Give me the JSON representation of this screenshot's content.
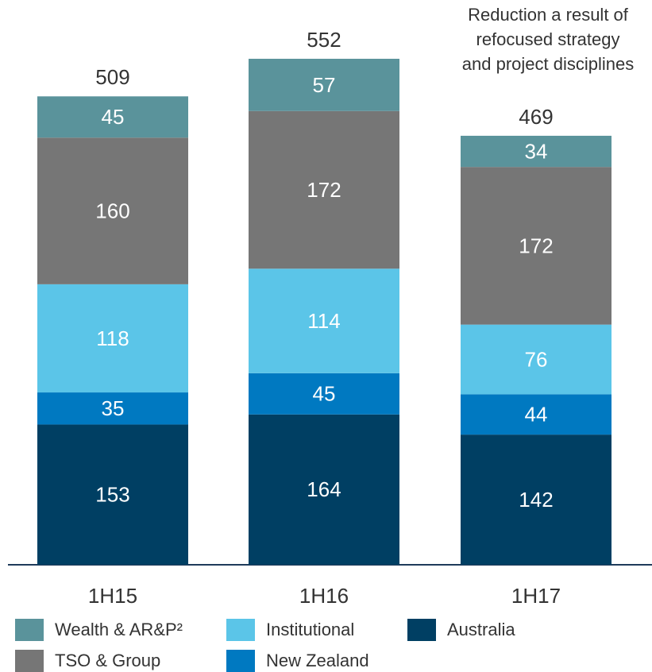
{
  "chart_data": {
    "type": "stacked_bar",
    "annotation": [
      "Reduction a result of",
      "refocused strategy",
      "and project disciplines"
    ],
    "categories": [
      "1H15",
      "1H16",
      "1H17"
    ],
    "totals": [
      509,
      552,
      469
    ],
    "series": [
      {
        "name": "Australia",
        "color": "#003f63",
        "values": [
          153,
          164,
          142
        ]
      },
      {
        "name": "New Zealand",
        "color": "#0079c1",
        "values": [
          35,
          45,
          44
        ]
      },
      {
        "name": "Institutional",
        "color": "#5bc5e8",
        "values": [
          118,
          114,
          76
        ]
      },
      {
        "name": "TSO & Group",
        "color": "#767676",
        "values": [
          160,
          172,
          172
        ]
      },
      {
        "name": "Wealth & AR&P²",
        "color": "#5a939b",
        "values": [
          45,
          57,
          34
        ]
      }
    ]
  }
}
